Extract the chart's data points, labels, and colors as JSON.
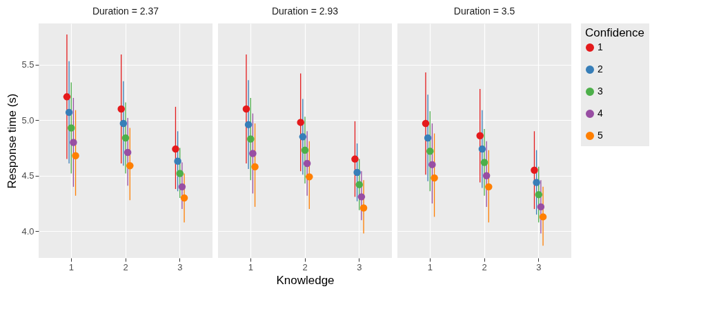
{
  "chart_data": [
    {
      "type": "scatter",
      "title": "Duration = 2.37",
      "ylabel": "Response time (s)",
      "categories": [
        "1",
        "2",
        "3"
      ],
      "ylim": [
        3.76,
        5.87
      ],
      "yticks": [
        {
          "value": 4,
          "label": "4.0"
        },
        {
          "value": 4.5,
          "label": "4.5"
        },
        {
          "value": 5,
          "label": "5.0"
        },
        {
          "value": 5.5,
          "label": "5.5"
        }
      ],
      "grid": true,
      "marker": "circle",
      "series": [
        {
          "color": "#e41a1c",
          "values": [
            5.21,
            5.1,
            4.74
          ],
          "errors": [
            [
              4.65,
              5.77
            ],
            [
              4.61,
              5.59
            ],
            [
              4.38,
              5.12
            ]
          ]
        },
        {
          "color": "#377eb8",
          "values": [
            5.07,
            4.97,
            4.63
          ],
          "errors": [
            [
              4.61,
              5.53
            ],
            [
              4.59,
              5.35
            ],
            [
              4.36,
              4.9
            ]
          ]
        },
        {
          "color": "#4daf4a",
          "values": [
            4.93,
            4.84,
            4.52
          ],
          "errors": [
            [
              4.52,
              5.34
            ],
            [
              4.52,
              5.16
            ],
            [
              4.3,
              4.75
            ]
          ]
        },
        {
          "color": "#984ea3",
          "values": [
            4.8,
            4.71,
            4.4
          ],
          "errors": [
            [
              4.4,
              5.2
            ],
            [
              4.41,
              5.02
            ],
            [
              4.2,
              4.62
            ]
          ]
        },
        {
          "color": "#ff7f00",
          "values": [
            4.68,
            4.59,
            4.3
          ],
          "errors": [
            [
              4.32,
              5.09
            ],
            [
              4.28,
              4.93
            ],
            [
              4.08,
              4.52
            ]
          ]
        }
      ]
    },
    {
      "type": "scatter",
      "title": "Duration = 2.93",
      "xlabel": "Knowledge",
      "categories": [
        "1",
        "2",
        "3"
      ],
      "ylim": [
        3.76,
        5.87
      ],
      "yticks": [
        4,
        4.5,
        5,
        5.5
      ],
      "grid": true,
      "marker": "circle",
      "tick_labels": "x",
      "series": [
        {
          "color": "#e41a1c",
          "values": [
            5.1,
            4.98,
            4.65
          ],
          "errors": [
            [
              4.61,
              5.59
            ],
            [
              4.54,
              5.42
            ],
            [
              4.31,
              4.99
            ]
          ]
        },
        {
          "color": "#377eb8",
          "values": [
            4.96,
            4.85,
            4.53
          ],
          "errors": [
            [
              4.56,
              5.36
            ],
            [
              4.51,
              5.19
            ],
            [
              4.27,
              4.79
            ]
          ]
        },
        {
          "color": "#4daf4a",
          "values": [
            4.83,
            4.73,
            4.42
          ],
          "errors": [
            [
              4.46,
              5.2
            ],
            [
              4.43,
              5.03
            ],
            [
              4.19,
              4.65
            ]
          ]
        },
        {
          "color": "#984ea3",
          "values": [
            4.7,
            4.61,
            4.31
          ],
          "errors": [
            [
              4.34,
              5.06
            ],
            [
              4.32,
              4.9
            ],
            [
              4.1,
              4.54
            ]
          ]
        },
        {
          "color": "#ff7f00",
          "values": [
            4.58,
            4.49,
            4.21
          ],
          "errors": [
            [
              4.22,
              4.97
            ],
            [
              4.2,
              4.81
            ],
            [
              3.98,
              4.46
            ]
          ]
        }
      ]
    },
    {
      "type": "scatter",
      "title": "Duration = 3.5",
      "categories": [
        "1",
        "2",
        "3"
      ],
      "ylim": [
        3.76,
        5.87
      ],
      "yticks": [
        4,
        4.5,
        5,
        5.5
      ],
      "grid": true,
      "marker": "circle",
      "tick_labels": "x",
      "legend": "right",
      "legend_title": "Confidence",
      "series": [
        {
          "name": "1",
          "color": "#e41a1c",
          "values": [
            4.97,
            4.86,
            4.55
          ],
          "errors": [
            [
              4.51,
              5.43
            ],
            [
              4.44,
              5.28
            ],
            [
              4.2,
              4.9
            ]
          ]
        },
        {
          "name": "2",
          "color": "#377eb8",
          "values": [
            4.84,
            4.74,
            4.44
          ],
          "errors": [
            [
              4.45,
              5.23
            ],
            [
              4.39,
              5.09
            ],
            [
              4.15,
              4.73
            ]
          ]
        },
        {
          "name": "3",
          "color": "#4daf4a",
          "values": [
            4.72,
            4.62,
            4.33
          ],
          "errors": [
            [
              4.36,
              5.08
            ],
            [
              4.32,
              4.92
            ],
            [
              4.08,
              4.58
            ]
          ]
        },
        {
          "name": "4",
          "color": "#984ea3",
          "values": [
            4.6,
            4.5,
            4.22
          ],
          "errors": [
            [
              4.25,
              4.97
            ],
            [
              4.22,
              4.81
            ],
            [
              3.98,
              4.46
            ]
          ]
        },
        {
          "name": "5",
          "color": "#ff7f00",
          "values": [
            4.48,
            4.4,
            4.13
          ],
          "errors": [
            [
              4.13,
              4.88
            ],
            [
              4.08,
              4.73
            ],
            [
              3.87,
              4.4
            ]
          ]
        }
      ]
    }
  ]
}
